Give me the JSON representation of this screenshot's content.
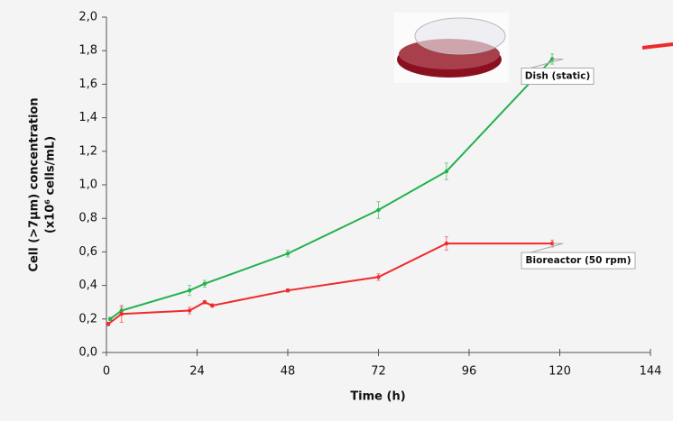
{
  "chart_data": {
    "type": "line",
    "x_label": "Time (h)",
    "y_label": [
      "Cell (>7µm) concentration",
      "(x10⁶ cells/mL)"
    ],
    "xlim": [
      0,
      144
    ],
    "xticks": [
      0,
      24,
      48,
      72,
      96,
      120,
      144
    ],
    "ylim": [
      0,
      2.0
    ],
    "yticks": [
      {
        "value": 0,
        "label": "0,0"
      },
      {
        "value": 0.2,
        "label": "0,2"
      },
      {
        "value": 0.4,
        "label": "0,4"
      },
      {
        "value": 0.6,
        "label": "0,6"
      },
      {
        "value": 0.8,
        "label": "0,8"
      },
      {
        "value": 1.0,
        "label": "1,0"
      },
      {
        "value": 1.2,
        "label": "1,2"
      },
      {
        "value": 1.4,
        "label": "1,4"
      },
      {
        "value": 1.6,
        "label": "1,6"
      },
      {
        "value": 1.8,
        "label": "1,8"
      },
      {
        "value": 2.0,
        "label": "2,0"
      }
    ],
    "series": [
      {
        "name": "Dish (static)",
        "color": "#22b14c",
        "x": [
          1,
          4,
          22,
          26,
          48,
          72,
          90,
          118
        ],
        "values": [
          0.2,
          0.25,
          0.37,
          0.41,
          0.59,
          0.85,
          1.08,
          1.75
        ],
        "errors": [
          0.01,
          0.02,
          0.03,
          0.02,
          0.02,
          0.05,
          0.05,
          0.03
        ]
      },
      {
        "name": "Bioreactor (50 rpm)",
        "color": "#ee2a2a",
        "x": [
          0.5,
          4,
          22,
          26,
          28,
          48,
          72,
          90,
          118
        ],
        "values": [
          0.17,
          0.23,
          0.25,
          0.3,
          0.28,
          0.37,
          0.45,
          0.65,
          0.65
        ],
        "errors": [
          0.01,
          0.05,
          0.02,
          0.01,
          0.01,
          0.01,
          0.02,
          0.04,
          0.02
        ]
      }
    ]
  }
}
